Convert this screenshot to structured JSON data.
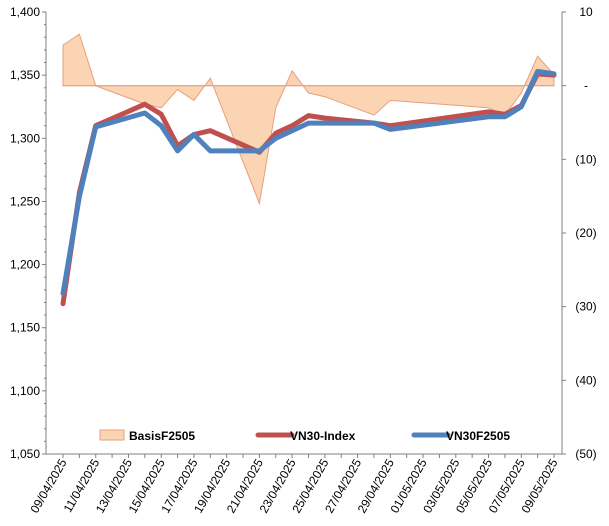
{
  "chart_data": {
    "type": "line",
    "x": [
      "09/04/2025",
      "10/04/2025",
      "11/04/2025",
      "14/04/2025",
      "15/04/2025",
      "16/04/2025",
      "17/04/2025",
      "18/04/2025",
      "21/04/2025",
      "22/04/2025",
      "23/04/2025",
      "24/04/2025",
      "25/04/2025",
      "28/04/2025",
      "29/04/2025",
      "05/05/2025",
      "06/05/2025",
      "07/05/2025",
      "08/05/2025",
      "09/05/2025"
    ],
    "x_tick_labels": [
      "09/04/2025",
      "11/04/2025",
      "13/04/2025",
      "15/04/2025",
      "17/04/2025",
      "19/04/2025",
      "21/04/2025",
      "23/04/2025",
      "25/04/2025",
      "27/04/2025",
      "29/04/2025",
      "01/05/2025",
      "03/05/2025",
      "05/05/2025",
      "07/05/2025",
      "09/05/2025"
    ],
    "series": [
      {
        "name": "VN30-Index",
        "axis": "left",
        "color": "#c0504d",
        "values": [
          1169,
          1257,
          1310,
          1327,
          1319,
          1294,
          1303,
          1306,
          1289,
          1304,
          1310,
          1318,
          1316,
          1312,
          1310,
          1321,
          1319,
          1326,
          1351,
          1350
        ]
      },
      {
        "name": "VN30F2505",
        "axis": "left",
        "color": "#4f81bd",
        "values": [
          1177,
          1254,
          1309,
          1320,
          1310,
          1290,
          1303,
          1290,
          1290,
          1300,
          1306,
          1312,
          1312,
          1312,
          1307,
          1317,
          1317,
          1325,
          1353,
          1351
        ]
      },
      {
        "name": "BasisF2505",
        "axis": "right",
        "type": "area",
        "color": "#fbd4b4",
        "edge": "#e6a07e",
        "values": [
          5.5,
          7.0,
          0,
          -2.5,
          -3.0,
          -0.5,
          -2.0,
          1.0,
          -16.0,
          -3.0,
          2.0,
          -1.0,
          -1.5,
          -4.0,
          -2.0,
          -3.0,
          -4.0,
          -1.0,
          4.0,
          1.5
        ]
      }
    ],
    "y_left": {
      "min": 1050,
      "max": 1400,
      "step": 50,
      "tick_labels": [
        "1,050",
        "1,100",
        "1,150",
        "1,200",
        "1,250",
        "1,300",
        "1,350",
        "1,400"
      ]
    },
    "y_right": {
      "min": -50,
      "max": 10,
      "step": 10,
      "tick_labels": [
        "(50)",
        "(40)",
        "(30)",
        "(20)",
        "(10)",
        "-",
        "10"
      ]
    },
    "legend": {
      "position": "bottom-inside",
      "entries": [
        "BasisF2505",
        "VN30-Index",
        "VN30F2505"
      ]
    },
    "grid": false
  }
}
